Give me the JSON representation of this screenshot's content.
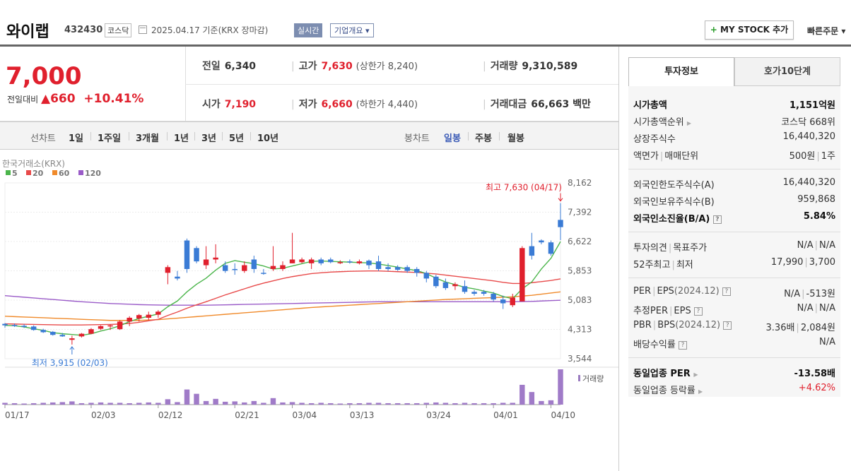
{
  "header": {
    "name": "와이랩",
    "code": "432430",
    "market": "코스닥",
    "date": "2025.04.17 기준(KRX 장마감)",
    "realtime": "실시간",
    "company_info": "기업개요 ▾",
    "mystock_plus": "+",
    "mystock_label": " MY STOCK 추가",
    "quick_order": "빠른주문 ▾"
  },
  "price": {
    "current": "7,000",
    "change_label": "전일대비",
    "change_value": "▲660",
    "change_pct": "+10.41%",
    "prev_label": "전일",
    "prev": "6,340",
    "open_label": "시가",
    "open": "7,190",
    "high_label": "고가",
    "high": "7,630",
    "upper_limit": "(상한가 8,240)",
    "low_label": "저가",
    "low": "6,660",
    "lower_limit": "(하한가 4,440)",
    "volume_label": "거래량",
    "volume": "9,310,589",
    "amount_label": "거래대금",
    "amount": "66,663",
    "amount_unit": "백만"
  },
  "tabs": {
    "line_label": "선차트",
    "line_periods": [
      "1일",
      "1주일",
      "3개월",
      "1년",
      "3년",
      "5년",
      "10년"
    ],
    "candle_label": "봉차트",
    "candle_periods": [
      "일봉",
      "주봉",
      "월봉"
    ],
    "selected": "일봉"
  },
  "chart_data": {
    "type": "candlestick",
    "source": "한국거래소(KRX)",
    "legend": [
      {
        "name": "5",
        "color": "#4bb54b"
      },
      {
        "name": "20",
        "color": "#e84a4a"
      },
      {
        "name": "60",
        "color": "#f08a2a"
      },
      {
        "name": "120",
        "color": "#9a5bc8"
      }
    ],
    "y_ticks": [
      "8,162",
      "7,392",
      "6,622",
      "5,853",
      "5,083",
      "4,313",
      "3,544"
    ],
    "ylim": [
      3544,
      8162
    ],
    "x_ticks": [
      "01/17",
      "02/03",
      "02/12",
      "02/21",
      "03/04",
      "03/13",
      "03/24",
      "04/01",
      "04/10"
    ],
    "high_annotation": "최고 7,630 (04/17)",
    "low_annotation": "최저 3,915 (02/03)",
    "volume_label": "거래량",
    "up_color": "#e0202d",
    "down_color": "#3a7bd5",
    "candles": [
      [
        4460,
        4480,
        4360,
        4420
      ],
      [
        4430,
        4470,
        4380,
        4400
      ],
      [
        4410,
        4450,
        4350,
        4380
      ],
      [
        4390,
        4420,
        4280,
        4300
      ],
      [
        4300,
        4330,
        4220,
        4240
      ],
      [
        4250,
        4270,
        4150,
        4170
      ],
      [
        4170,
        4220,
        4120,
        4130
      ],
      [
        4040,
        4150,
        3915,
        4080
      ],
      [
        4130,
        4220,
        4100,
        4200
      ],
      [
        4200,
        4350,
        4190,
        4320
      ],
      [
        4330,
        4420,
        4300,
        4400
      ],
      [
        4400,
        4450,
        4300,
        4420
      ],
      [
        4320,
        4560,
        4300,
        4520
      ],
      [
        4520,
        4660,
        4400,
        4620
      ],
      [
        4600,
        4720,
        4520,
        4690
      ],
      [
        4620,
        4780,
        4560,
        4700
      ],
      [
        4700,
        4820,
        4620,
        4780
      ],
      [
        5800,
        6000,
        5500,
        5950
      ],
      [
        5700,
        5850,
        5600,
        5650
      ],
      [
        6650,
        6700,
        5800,
        5900
      ],
      [
        6450,
        6500,
        6050,
        6100
      ],
      [
        6000,
        6500,
        5900,
        6150
      ],
      [
        6150,
        6550,
        6050,
        6200
      ],
      [
        6000,
        6100,
        5800,
        5850
      ],
      [
        5900,
        6050,
        5750,
        5880
      ],
      [
        5850,
        6100,
        5800,
        6000
      ],
      [
        6150,
        6250,
        5800,
        5900
      ],
      [
        5800,
        5900,
        5750,
        5780
      ],
      [
        5900,
        6500,
        5850,
        5980
      ],
      [
        5900,
        6100,
        5850,
        6000
      ],
      [
        6050,
        6850,
        6050,
        6150
      ],
      [
        6080,
        6200,
        6050,
        6150
      ],
      [
        6050,
        6200,
        5900,
        6150
      ],
      [
        6150,
        6200,
        6000,
        6050
      ],
      [
        6150,
        6200,
        6050,
        6080
      ],
      [
        6060,
        6130,
        6030,
        6080
      ],
      [
        6100,
        6150,
        6040,
        6080
      ],
      [
        6050,
        6150,
        6020,
        6100
      ],
      [
        6120,
        6150,
        5900,
        6000
      ],
      [
        6100,
        6250,
        5850,
        5900
      ],
      [
        5950,
        6050,
        5850,
        5900
      ],
      [
        5950,
        6000,
        5850,
        5880
      ],
      [
        5950,
        6000,
        5800,
        5850
      ],
      [
        5900,
        5950,
        5700,
        5800
      ],
      [
        5800,
        5850,
        5550,
        5650
      ],
      [
        5700,
        5750,
        5400,
        5450
      ],
      [
        5550,
        5650,
        5350,
        5400
      ],
      [
        5450,
        5550,
        5350,
        5500
      ],
      [
        5450,
        5600,
        5250,
        5300
      ],
      [
        5300,
        5350,
        5200,
        5250
      ],
      [
        5300,
        5350,
        5200,
        5250
      ],
      [
        5250,
        5300,
        5050,
        5100
      ],
      [
        5100,
        5200,
        4850,
        5000
      ],
      [
        4950,
        5250,
        4900,
        5150
      ],
      [
        5050,
        6500,
        5050,
        6450
      ],
      [
        6500,
        6850,
        6150,
        6250
      ],
      [
        6650,
        6680,
        6550,
        6600
      ],
      [
        6600,
        6650,
        6250,
        6300
      ],
      [
        7190,
        7630,
        6660,
        7000
      ]
    ],
    "ma5": [
      4420,
      4410,
      4380,
      4330,
      4290,
      4230,
      4200,
      4180,
      4160,
      4200,
      4270,
      4330,
      4410,
      4520,
      4600,
      4660,
      4720,
      4910,
      5060,
      5300,
      5500,
      5660,
      5870,
      6050,
      6120,
      6080,
      6040,
      5980,
      5900,
      5920,
      5980,
      6040,
      6100,
      6110,
      6100,
      6090,
      6080,
      6070,
      6060,
      6030,
      5990,
      5950,
      5900,
      5860,
      5780,
      5660,
      5560,
      5490,
      5420,
      5380,
      5320,
      5270,
      5180,
      5120,
      5380,
      5560,
      5900,
      6180,
      6620
    ],
    "ma20": [
      4460,
      4455,
      4450,
      4445,
      4440,
      4435,
      4430,
      4430,
      4430,
      4435,
      4440,
      4445,
      4455,
      4470,
      4500,
      4540,
      4580,
      4680,
      4770,
      4870,
      4960,
      5040,
      5130,
      5220,
      5300,
      5380,
      5460,
      5530,
      5590,
      5650,
      5700,
      5740,
      5780,
      5800,
      5820,
      5830,
      5840,
      5845,
      5850,
      5850,
      5840,
      5830,
      5820,
      5810,
      5790,
      5770,
      5740,
      5710,
      5680,
      5650,
      5620,
      5590,
      5550,
      5520,
      5520,
      5540,
      5570,
      5600,
      5640
    ],
    "ma60": [
      4660,
      4650,
      4640,
      4630,
      4620,
      4610,
      4600,
      4590,
      4580,
      4570,
      4560,
      4550,
      4550,
      4550,
      4550,
      4560,
      4570,
      4590,
      4610,
      4630,
      4650,
      4670,
      4690,
      4710,
      4730,
      4750,
      4770,
      4790,
      4810,
      4830,
      4850,
      4870,
      4890,
      4905,
      4920,
      4935,
      4950,
      4965,
      4980,
      4995,
      5010,
      5025,
      5040,
      5055,
      5070,
      5085,
      5100,
      5110,
      5120,
      5130,
      5140,
      5150,
      5160,
      5170,
      5190,
      5210,
      5240,
      5270,
      5300
    ],
    "ma120": [
      5200,
      5180,
      5160,
      5140,
      5120,
      5100,
      5080,
      5060,
      5040,
      5025,
      5010,
      4995,
      4985,
      4975,
      4965,
      4960,
      4955,
      4950,
      4950,
      4950,
      4950,
      4950,
      4955,
      4960,
      4965,
      4970,
      4975,
      4980,
      4985,
      4990,
      4995,
      5000,
      5005,
      5010,
      5015,
      5020,
      5025,
      5030,
      5035,
      5040,
      5040,
      5040,
      5040,
      5040,
      5040,
      5040,
      5040,
      5040,
      5040,
      5040,
      5040,
      5040,
      5040,
      5040,
      5045,
      5050,
      5060,
      5070,
      5080
    ],
    "volumes": [
      0.05,
      0.04,
      0.03,
      0.04,
      0.05,
      0.06,
      0.07,
      0.09,
      0.04,
      0.05,
      0.06,
      0.05,
      0.05,
      0.04,
      0.05,
      0.06,
      0.05,
      0.15,
      0.07,
      0.42,
      0.3,
      0.1,
      0.16,
      0.08,
      0.09,
      0.06,
      0.1,
      0.05,
      0.18,
      0.06,
      0.07,
      0.05,
      0.04,
      0.05,
      0.04,
      0.03,
      0.04,
      0.04,
      0.05,
      0.05,
      0.04,
      0.04,
      0.04,
      0.04,
      0.05,
      0.06,
      0.05,
      0.04,
      0.05,
      0.04,
      0.04,
      0.04,
      0.05,
      0.05,
      0.55,
      0.35,
      0.1,
      0.12,
      0.98
    ]
  },
  "invest": {
    "tab_active": "투자정보",
    "tab_other": "호가10단계",
    "market_cap_label": "시가총액",
    "market_cap": "1,151억원",
    "cap_rank_label": "시가총액순위",
    "cap_rank": "코스닥 668위",
    "shares_label": "상장주식수",
    "shares": "16,440,320",
    "par_label_a": "액면가",
    "par_label_b": "매매단위",
    "par_a": "500원",
    "par_b": "1주",
    "foreign_limit_label": "외국인한도주식수(A)",
    "foreign_limit": "16,440,320",
    "foreign_hold_label": "외국인보유주식수(B)",
    "foreign_hold": "959,868",
    "foreign_ratio_label": "외국인소진율(B/A)",
    "foreign_ratio": "5.84%",
    "opinion_label_a": "투자의견",
    "opinion_label_b": "목표주가",
    "opinion_a": "N/A",
    "opinion_b": "N/A",
    "w52_label_a": "52주최고",
    "w52_label_b": "최저",
    "w52_a": "17,990",
    "w52_b": "3,700",
    "per_label_a": "PER",
    "per_label_b": "EPS",
    "per_label_c": "(2024.12)",
    "per_a": "N/A",
    "per_b": "-513원",
    "est_label_a": "추정PER",
    "est_label_b": "EPS",
    "est_a": "N/A",
    "est_b": "N/A",
    "pbr_label_a": "PBR",
    "pbr_label_b": "BPS",
    "pbr_label_c": "(2024.12)",
    "pbr_a": "3.36배",
    "pbr_b": "2,084원",
    "div_label": "배당수익률",
    "div": "N/A",
    "ind_per_label": "동일업종 PER",
    "ind_per": "-13.58배",
    "ind_rate_label": "동일업종 등락률",
    "ind_rate": "+4.62%"
  }
}
